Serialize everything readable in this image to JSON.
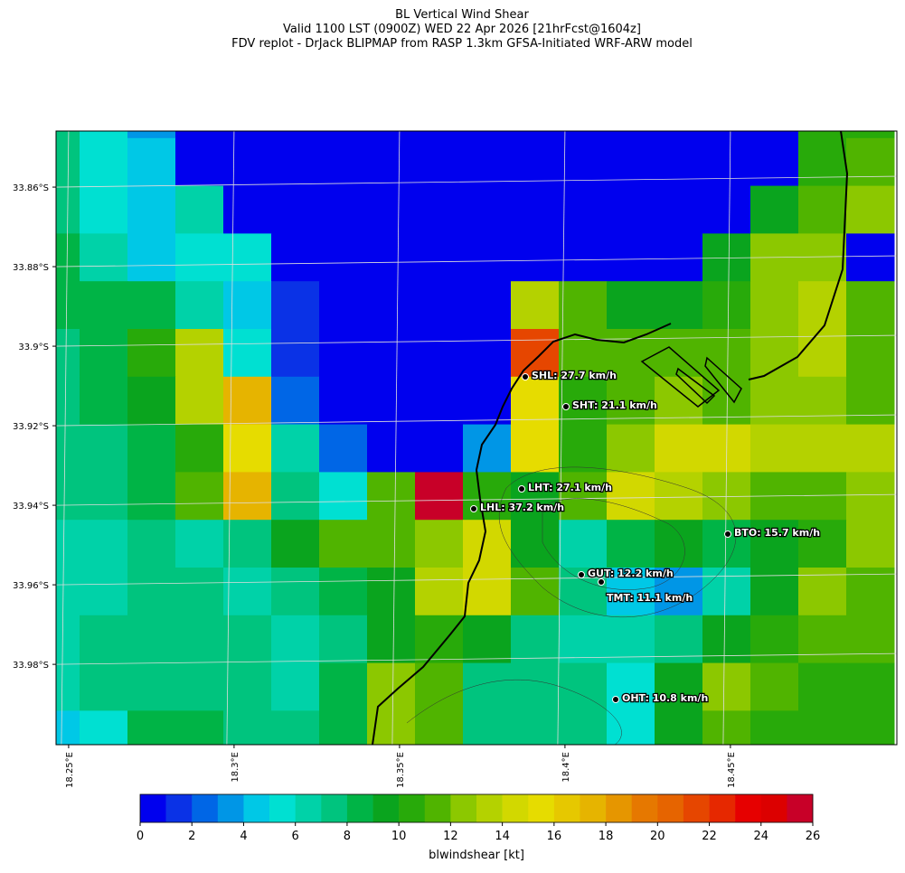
{
  "title": [
    "BL Vertical Wind Shear",
    "Valid 1100 LST (0900Z) WED 22 Apr 2026 [21hrFcst@1604z]",
    "FDV replot - DrJack BLIPMAP from RASP 1.3km GFSA-Initiated WRF-ARW model"
  ],
  "map": {
    "xlim": [
      18.2462,
      18.5003
    ],
    "ylim": [
      -34.0002,
      -33.8459
    ],
    "xticks": [
      {
        "value": 18.25,
        "label": "18.25°E"
      },
      {
        "value": 18.3,
        "label": "18.3°E"
      },
      {
        "value": 18.35,
        "label": "18.35°E"
      },
      {
        "value": 18.4,
        "label": "18.4°E"
      },
      {
        "value": 18.45,
        "label": "18.45°E"
      }
    ],
    "yticks": [
      {
        "value": -33.86,
        "label": "33.86°S"
      },
      {
        "value": -33.88,
        "label": "33.88°S"
      },
      {
        "value": -33.9,
        "label": "33.9°S"
      },
      {
        "value": -33.92,
        "label": "33.92°S"
      },
      {
        "value": -33.94,
        "label": "33.94°S"
      },
      {
        "value": -33.96,
        "label": "33.96°S"
      },
      {
        "value": -33.98,
        "label": "33.98°S"
      }
    ],
    "cells": [
      [
        7,
        5.5,
        3.5,
        0.5,
        0.5,
        0.5,
        0.5,
        0.5,
        0.5,
        0.5,
        0.5,
        0.5,
        0.5,
        0.5,
        0.5,
        0.5,
        10.5,
        10.5
      ],
      [
        7.5,
        5.5,
        4.5,
        0.5,
        0.5,
        0.5,
        0.5,
        0.5,
        0.5,
        0.5,
        0.5,
        0.5,
        0.5,
        0.5,
        0.5,
        0.5,
        10.5,
        11.5
      ],
      [
        7,
        5.5,
        4.5,
        6.5,
        0.5,
        0.5,
        0.5,
        0.5,
        0.5,
        0.5,
        0.5,
        0.5,
        0.5,
        0.5,
        0.5,
        9.5,
        11.5,
        12.5
      ],
      [
        8.5,
        6.5,
        4.5,
        5.5,
        5.5,
        0.5,
        0.5,
        0.5,
        0.5,
        0.5,
        0.5,
        0.5,
        0.5,
        0.5,
        9.5,
        12.5,
        12.5,
        0.5
      ],
      [
        8.5,
        8.5,
        8.5,
        6.5,
        4.5,
        1.5,
        0.5,
        0.5,
        0.5,
        0.5,
        13.5,
        11.5,
        9.5,
        9.5,
        10.5,
        12.5,
        13.5,
        11.5
      ],
      [
        7.5,
        8.5,
        10.5,
        13.5,
        5.5,
        1.5,
        0.5,
        0.5,
        0.5,
        0.5,
        21.5,
        11.5,
        11.5,
        11.5,
        11.5,
        12.5,
        13.5,
        11.5
      ],
      [
        7.5,
        8.5,
        9.5,
        13.5,
        17.5,
        2.5,
        0.5,
        0.5,
        0.5,
        0.5,
        15.5,
        10.5,
        11.5,
        12.5,
        11.5,
        12.5,
        12.5,
        11.5
      ],
      [
        7.5,
        7.5,
        8.5,
        10.5,
        15.5,
        6.5,
        2.5,
        0.5,
        0.5,
        3.5,
        15.5,
        10.5,
        12.5,
        14.5,
        14.5,
        13.5,
        13.5,
        13.5
      ],
      [
        7.5,
        7.5,
        8.5,
        11.5,
        17.5,
        7.5,
        5.5,
        11.5,
        25.5,
        10.5,
        9.5,
        11.5,
        14.5,
        13.5,
        12.5,
        11.5,
        11.5,
        12.5
      ],
      [
        6.5,
        6.5,
        7.5,
        6.5,
        7.5,
        9.5,
        11.5,
        11.5,
        12.5,
        14.5,
        9.5,
        6.5,
        8.5,
        9.5,
        8.5,
        9.5,
        10.5,
        12.5
      ],
      [
        6.5,
        6.5,
        7.5,
        7.5,
        6.5,
        7.5,
        8.5,
        9.5,
        13.5,
        14.5,
        11.5,
        7.5,
        4.5,
        3.5,
        6.5,
        9.5,
        12.5,
        11.5
      ],
      [
        6.5,
        7.5,
        7.5,
        7.5,
        7.5,
        6.5,
        7.5,
        9.5,
        10.5,
        9.5,
        7.5,
        6.5,
        6.5,
        7.5,
        9.5,
        10.5,
        11.5,
        11.5
      ],
      [
        6.5,
        7.5,
        7.5,
        7.5,
        7.5,
        6.5,
        8.5,
        12.5,
        11.5,
        7.5,
        7.5,
        7.5,
        5.5,
        9.5,
        12.5,
        11.5,
        10.5,
        10.5
      ],
      [
        4.5,
        5.5,
        8.5,
        8.5,
        7.5,
        7.5,
        8.5,
        12.5,
        11.5,
        7.5,
        7.5,
        7.5,
        5.5,
        9.5,
        11.5,
        10.5,
        10.5,
        10.5
      ]
    ],
    "stations": [
      {
        "label": "SHL: 27.7 km/h"
      },
      {
        "label": "SHT: 21.1 km/h"
      },
      {
        "label": "LHT: 27.1 km/h"
      },
      {
        "label": "LHL: 37.2 km/h"
      },
      {
        "label": "BTO: 15.7 km/h"
      },
      {
        "label": "GUT: 12.2 km/h"
      },
      {
        "label": "TMT: 11.1 km/h"
      },
      {
        "label": "OHT: 10.8 km/h"
      }
    ]
  },
  "colorbar": {
    "label": "blwindshear [kt]",
    "clim": [
      0,
      26
    ],
    "ticks": [
      0,
      2,
      4,
      6,
      8,
      10,
      12,
      14,
      16,
      18,
      20,
      22,
      24,
      26
    ],
    "colors": [
      "#0000ee",
      "#0a32e6",
      "#0066e6",
      "#0096e6",
      "#00c8e6",
      "#00e0d2",
      "#00d2a8",
      "#00c47e",
      "#00b446",
      "#0aa41e",
      "#28aa0a",
      "#50b400",
      "#8cc800",
      "#b4d200",
      "#d2d800",
      "#e6dc00",
      "#e6c800",
      "#e6b400",
      "#e69600",
      "#e67800",
      "#e66400",
      "#e64600",
      "#e62800",
      "#e60000",
      "#dc0000",
      "#c80028"
    ]
  }
}
